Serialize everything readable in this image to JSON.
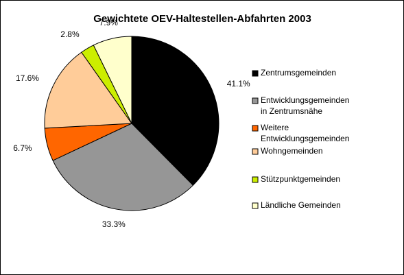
{
  "chart_data": {
    "type": "pie",
    "title": "Gewichtete OEV-Haltestellen-Abfahrten 2003",
    "categories": [
      [
        "Zentrumsgemeinden"
      ],
      [
        "Entwicklungsgemeinden",
        "in Zentrumsnähe"
      ],
      [
        "Weitere",
        "Entwicklungsgemeinden"
      ],
      [
        "Wohngemeinden"
      ],
      [
        "Stützpunktgemeinden"
      ],
      [
        "Ländliche Gemeinden"
      ]
    ],
    "values": [
      41.1,
      33.3,
      6.7,
      17.6,
      2.8,
      7.9
    ],
    "value_labels": [
      "41.1%",
      "33.3%",
      "6.7%",
      "17.6%",
      "2.8%",
      "7.9%"
    ],
    "colors": [
      "#000000",
      "#969696",
      "#ff6600",
      "#ffcc99",
      "#ccee00",
      "#ffffcc"
    ],
    "legend": "right"
  }
}
